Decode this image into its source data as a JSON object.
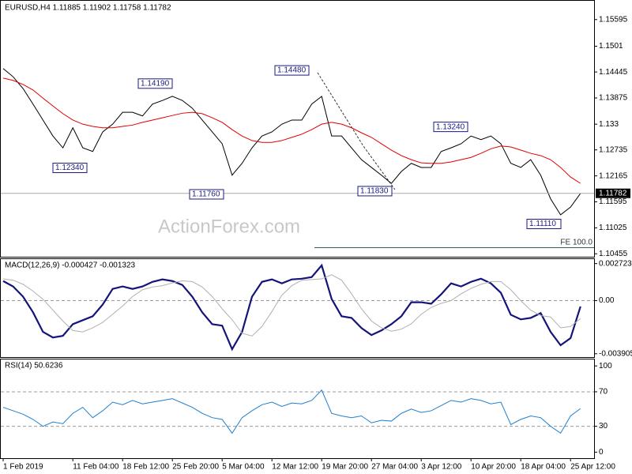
{
  "header": "EURUSD,H4  1.11885 1.11902 1.11758 1.11782",
  "watermark": "ActionForex.com",
  "chart_data": [
    {
      "type": "line",
      "categories": [
        "1 Feb 2019",
        null,
        null,
        null,
        null,
        null,
        null,
        "11 Feb 04:00",
        null,
        null,
        null,
        null,
        "18 Feb 12:00",
        null,
        null,
        null,
        null,
        "25 Feb 20:00",
        null,
        null,
        null,
        null,
        "5 Mar 04:00",
        null,
        null,
        null,
        null,
        "12 Mar 12:00",
        null,
        null,
        null,
        null,
        "19 Mar 20:00",
        null,
        null,
        null,
        null,
        "27 Mar 04:00",
        null,
        null,
        null,
        null,
        "3 Apr 12:00",
        null,
        null,
        null,
        null,
        "10 Apr 20:00",
        null,
        null,
        null,
        null,
        "18 Apr 04:00",
        null,
        null,
        null,
        null,
        "25 Apr 12:00",
        null
      ],
      "series": [
        {
          "color": "#000000",
          "values": [
            1.1452,
            1.1434,
            1.1408,
            1.1374,
            1.1339,
            1.1304,
            1.1278,
            1.1322,
            1.1278,
            1.127,
            1.1313,
            1.133,
            1.1356,
            1.1356,
            1.1348,
            1.1374,
            1.1382,
            1.1391,
            1.1382,
            1.1365,
            1.1339,
            1.1313,
            1.1287,
            1.1218,
            1.1244,
            1.1278,
            1.1304,
            1.1313,
            1.133,
            1.1339,
            1.1339,
            1.1374,
            1.1391,
            1.1304,
            1.1304,
            1.1278,
            1.1252,
            1.1235,
            1.1218,
            1.12,
            1.1226,
            1.1244,
            1.1235,
            1.1235,
            1.127,
            1.1278,
            1.1287,
            1.1304,
            1.1296,
            1.1304,
            1.1287,
            1.1244,
            1.1235,
            1.1252,
            1.1218,
            1.1166,
            1.1131,
            1.1148,
            1.1178
          ]
        },
        {
          "color": "#e00000",
          "values": [
            1.1431,
            1.1426,
            1.1417,
            1.1405,
            1.1387,
            1.137,
            1.1353,
            1.1339,
            1.133,
            1.1325,
            1.1322,
            1.1322,
            1.1325,
            1.1328,
            1.1334,
            1.1339,
            1.1344,
            1.1349,
            1.1354,
            1.1356,
            1.1353,
            1.1344,
            1.1334,
            1.1318,
            1.1304,
            1.1294,
            1.129,
            1.129,
            1.1294,
            1.1301,
            1.1308,
            1.1318,
            1.133,
            1.1334,
            1.133,
            1.1322,
            1.1311,
            1.1301,
            1.1287,
            1.1273,
            1.1261,
            1.1252,
            1.1245,
            1.1244,
            1.1244,
            1.1247,
            1.1252,
            1.1257,
            1.1266,
            1.1276,
            1.1282,
            1.128,
            1.1273,
            1.1266,
            1.1261,
            1.1252,
            1.1235,
            1.1214,
            1.12
          ]
        }
      ],
      "ylim": [
        1.1039,
        1.1599
      ],
      "yticks": [
        1.15595,
        1.1501,
        1.14445,
        1.13875,
        1.133,
        1.12735,
        1.12165,
        1.11595,
        1.11025,
        1.10455
      ],
      "last_price": 1.11782,
      "annotations": [
        {
          "value": 1.1419,
          "label": "1.14190"
        },
        {
          "value": 1.1234,
          "label": "1.12340"
        },
        {
          "value": 1.1176,
          "label": "1.11760"
        },
        {
          "value": 1.1448,
          "label": "1.14480"
        },
        {
          "value": 1.1183,
          "label": "1.11830"
        },
        {
          "value": 1.1324,
          "label": "1.13240"
        },
        {
          "value": 1.1111,
          "label": "1.11110"
        }
      ],
      "fe_label": "FE 100.0"
    },
    {
      "type": "line",
      "title": "MACD(12,26,9) -0.000427 -0.001323",
      "series": [
        {
          "color": "#14147a",
          "values": [
            0.00144,
            0.00104,
            0.00029,
            -0.00086,
            -0.0023,
            -0.00271,
            -0.00259,
            -0.00173,
            -0.00144,
            -0.00115,
            -0.00029,
            0.00086,
            0.00104,
            0.00086,
            0.00104,
            0.00138,
            0.00156,
            0.00144,
            0.00115,
            0.00029,
            -0.00086,
            -0.00173,
            -0.00184,
            -0.00357,
            -0.0023,
            0.00029,
            0.00138,
            0.00156,
            0.00127,
            0.00156,
            0.00161,
            0.00173,
            0.00259,
            0.00012,
            -0.00115,
            -0.00127,
            -0.00202,
            -0.00253,
            -0.00219,
            -0.00173,
            -0.00115,
            -0.00012,
            -0.00012,
            -0.00023,
            0.00046,
            0.00127,
            0.00104,
            0.00138,
            0.00161,
            0.00127,
            0.00058,
            -0.00104,
            -0.00138,
            -0.00127,
            -0.00092,
            -0.0023,
            -0.00328,
            -0.00276,
            -0.00043
          ]
        },
        {
          "color": "#b0b0b0",
          "values": [
            0.0016,
            0.0015,
            0.0012,
            0.0007,
            0.0001,
            -0.0007,
            -0.0015,
            -0.0022,
            -0.0023,
            -0.002,
            -0.0016,
            -0.001,
            -0.0004,
            0.0003,
            0.0008,
            0.001,
            0.0011,
            0.0013,
            0.00145,
            0.0014,
            0.001,
            0.0003,
            -0.0006,
            -0.0014,
            -0.0024,
            -0.0026,
            -0.0019,
            -0.0008,
            0.0004,
            0.0011,
            0.0015,
            0.00155,
            0.0016,
            0.0019,
            0.0015,
            0.0005,
            -0.0006,
            -0.0015,
            -0.002,
            -0.00225,
            -0.0021,
            -0.0017,
            -0.001,
            -0.0005,
            -0.0002,
            0.0,
            0.0005,
            0.0009,
            0.0012,
            0.0014,
            0.0014,
            0.0008,
            0.0,
            -0.0007,
            -0.0011,
            -0.0012,
            -0.002,
            -0.0019,
            -0.00132
          ]
        }
      ],
      "ylim": [
        -0.00415,
        0.00305
      ],
      "yticks": [
        0.002723,
        {
          "value": 0,
          "label": "0.00"
        },
        -0.003905
      ],
      "levels": [
        0
      ]
    },
    {
      "type": "line",
      "title": "RSI(14) 50.6236",
      "series": [
        {
          "color": "#1e7fd0",
          "values": [
            52,
            48,
            44,
            38,
            30,
            35,
            33,
            45,
            52,
            40,
            48,
            58,
            55,
            60,
            56,
            58,
            60,
            62,
            57,
            52,
            45,
            40,
            38,
            22,
            40,
            48,
            55,
            58,
            53,
            57,
            56,
            60,
            72,
            45,
            42,
            40,
            42,
            34,
            37,
            36,
            45,
            50,
            46,
            48,
            54,
            60,
            58,
            62,
            60,
            56,
            58,
            32,
            38,
            42,
            40,
            30,
            22,
            42,
            50.6
          ]
        }
      ],
      "ylim": [
        -7,
        107.5
      ],
      "yticks": [
        100,
        70,
        30,
        0
      ],
      "levels": [
        70,
        30
      ]
    }
  ]
}
